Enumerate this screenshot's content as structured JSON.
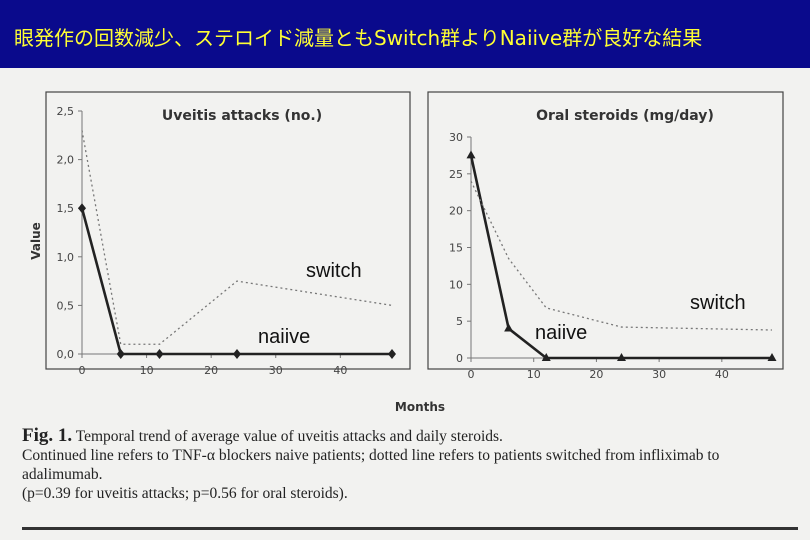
{
  "banner": {
    "title": "眼発作の回数減少、ステロイド減量ともSwitch群よりNaiive群が良好な結果",
    "background": "#0a0a8c",
    "color": "#ffff33"
  },
  "chart_data": [
    {
      "type": "line",
      "title": "Uveitis attacks (no.)",
      "ylabel": "Value",
      "xticks": [
        "0",
        "10",
        "20",
        "30",
        "40"
      ],
      "yticks": [
        "0,0",
        "0,5",
        "1,0",
        "1,5",
        "2,0",
        "2,5"
      ],
      "xlim": [
        0,
        48
      ],
      "ylim": [
        0,
        2.5
      ],
      "series": [
        {
          "name": "naiive",
          "style": "solid",
          "marker": "diamond",
          "x": [
            0,
            6,
            12,
            24,
            48
          ],
          "y": [
            1.5,
            0.0,
            0.0,
            0.0,
            0.0
          ]
        },
        {
          "name": "switch",
          "style": "dotted",
          "marker": "none",
          "x": [
            0,
            6,
            12,
            24,
            48
          ],
          "y": [
            2.3,
            0.1,
            0.1,
            0.75,
            0.5
          ]
        }
      ]
    },
    {
      "type": "line",
      "title": "Oral steroids (mg/day)",
      "ylabel": "",
      "xticks": [
        "0",
        "10",
        "20",
        "30",
        "40"
      ],
      "yticks": [
        "0",
        "5",
        "10",
        "15",
        "20",
        "25",
        "30"
      ],
      "xlim": [
        0,
        48
      ],
      "ylim": [
        0,
        30
      ],
      "series": [
        {
          "name": "naiive",
          "style": "solid",
          "marker": "triangle",
          "x": [
            0,
            6,
            12,
            24,
            48
          ],
          "y": [
            27.5,
            4.0,
            0.0,
            0.0,
            0.0
          ]
        },
        {
          "name": "switch",
          "style": "dotted",
          "marker": "none",
          "x": [
            0,
            6,
            12,
            24,
            48
          ],
          "y": [
            24.0,
            13.5,
            6.8,
            4.2,
            3.8
          ]
        }
      ]
    }
  ],
  "shared_xlabel": "Months",
  "annotations": {
    "switch": "switch",
    "naiive": "naiive"
  },
  "caption": {
    "fig_label": "Fig. 1.",
    "line1": " Temporal trend of average value of uveitis attacks and daily steroids.",
    "line2": "Continued line refers to TNF-α blockers naive patients; dotted line refers to patients switched from infliximab to adalimumab.",
    "line3": "(p=0.39 for uveitis attacks; p=0.56 for oral steroids)."
  }
}
